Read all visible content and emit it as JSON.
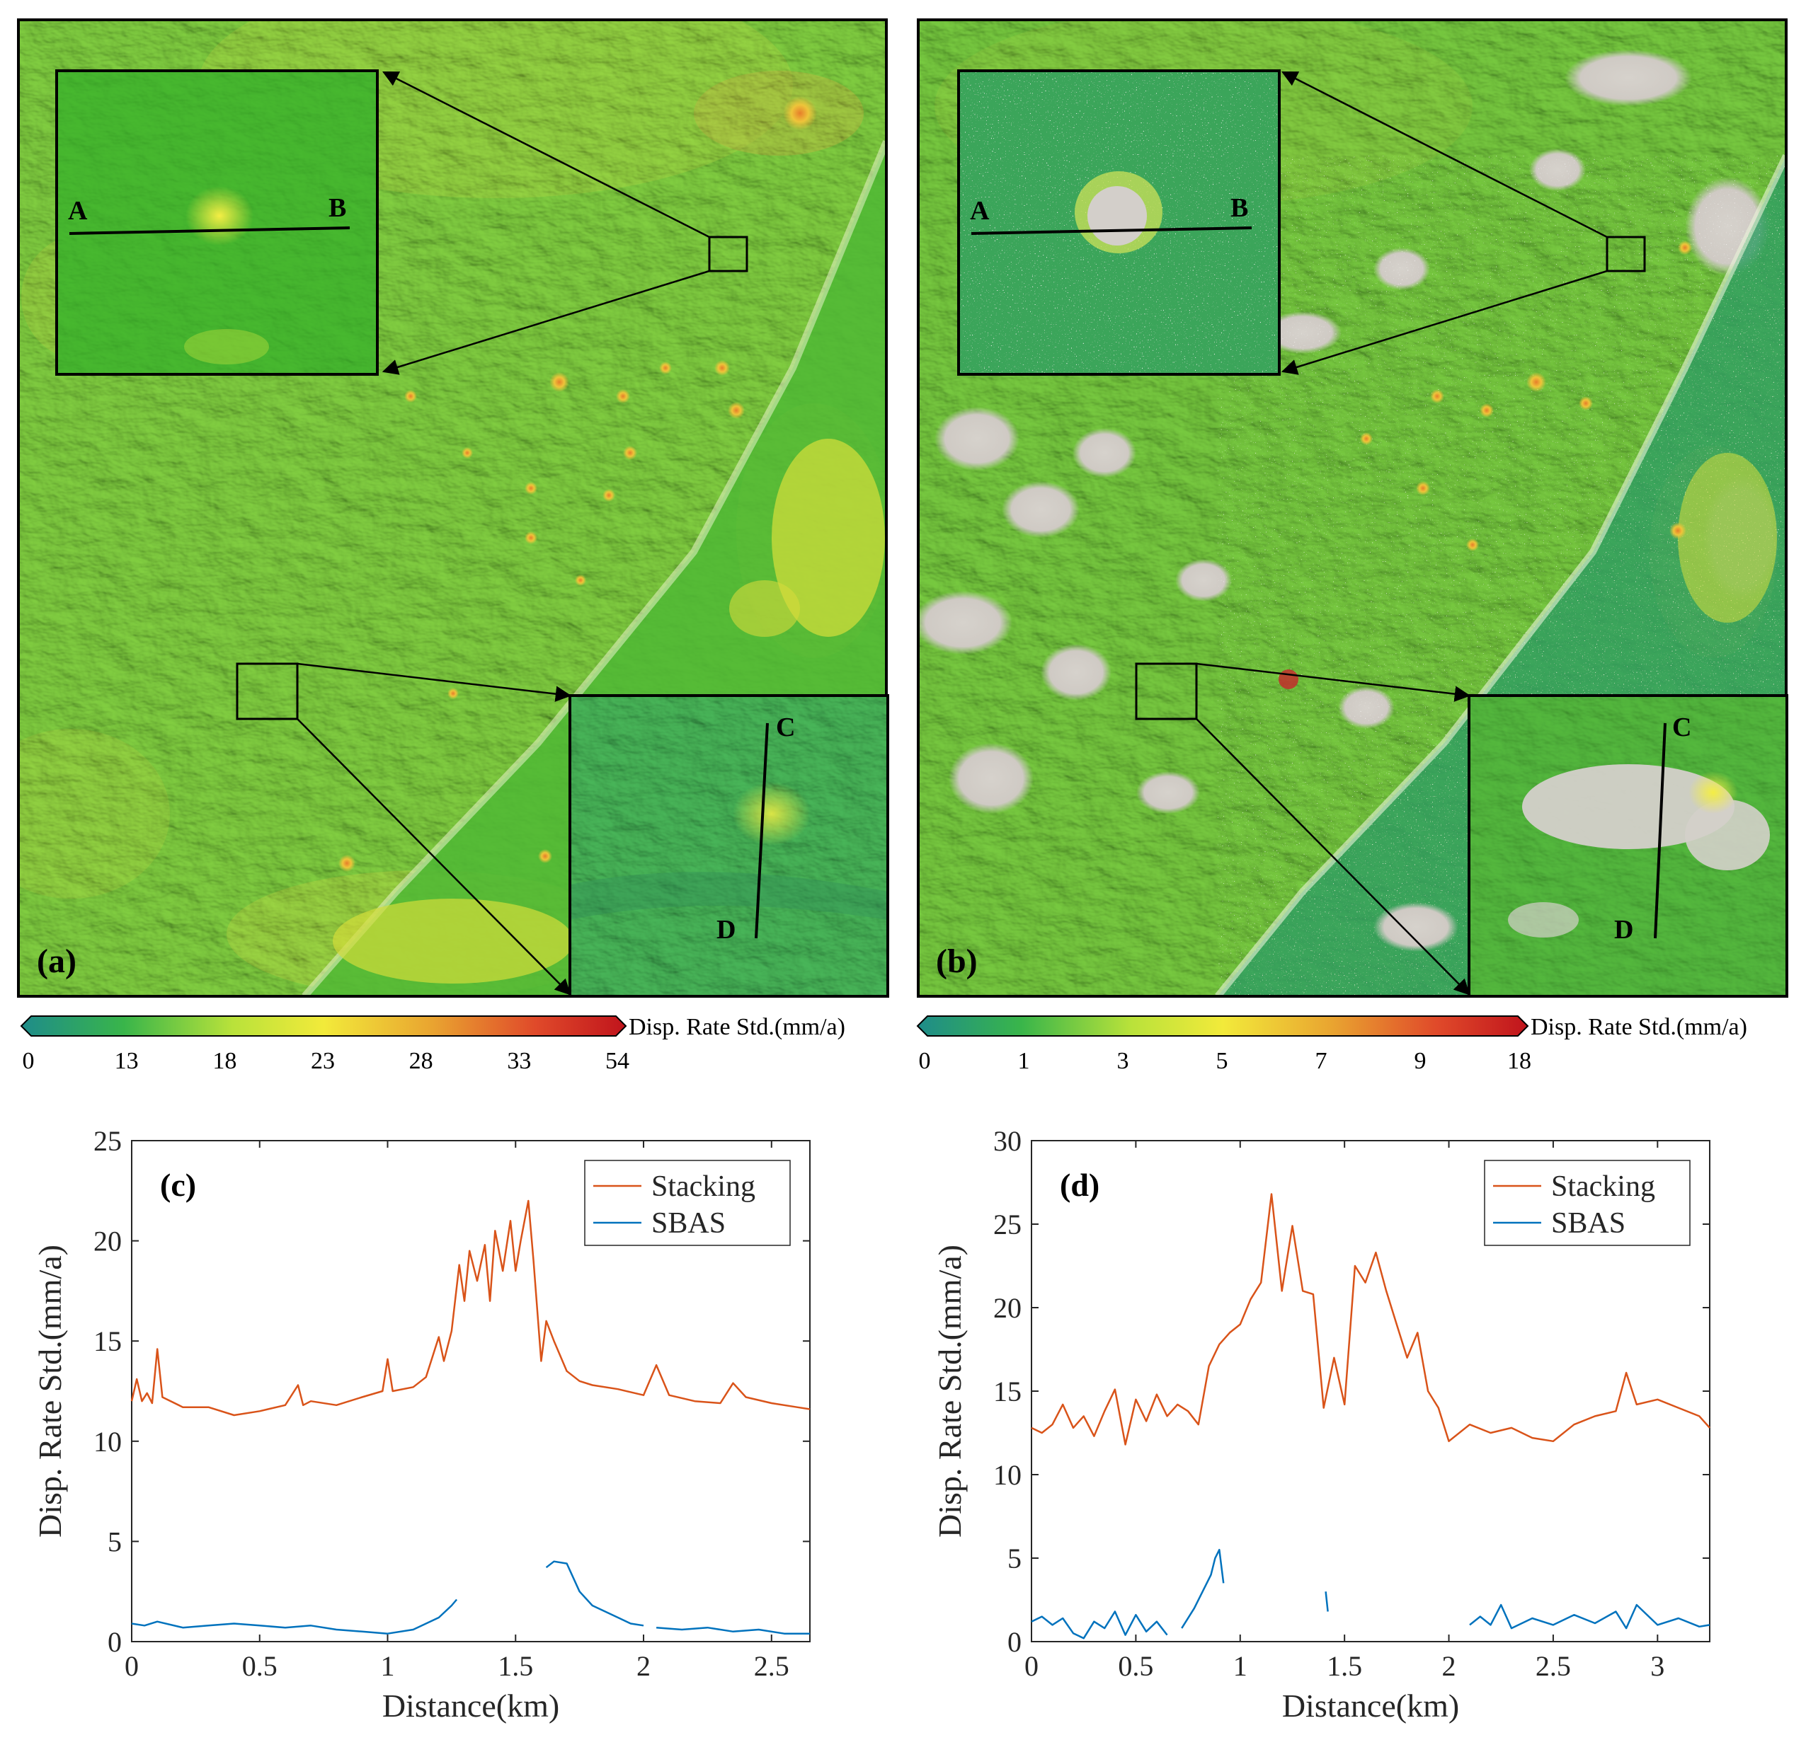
{
  "maps": [
    {
      "id": "a",
      "panel_label": "(a)",
      "inset_top": {
        "point_a": "A",
        "point_b": "B"
      },
      "inset_bottom": {
        "point_c": "C",
        "point_d": "D"
      },
      "colorbar": {
        "title": "Disp. Rate Std.(mm/a)",
        "ticks": [
          "0",
          "13",
          "18",
          "23",
          "28",
          "33",
          "54"
        ]
      }
    },
    {
      "id": "b",
      "panel_label": "(b)",
      "inset_top": {
        "point_a": "A",
        "point_b": "B"
      },
      "inset_bottom": {
        "point_c": "C",
        "point_d": "D"
      },
      "colorbar": {
        "title": "Disp. Rate Std.(mm/a)",
        "ticks": [
          "0",
          "1",
          "3",
          "5",
          "7",
          "9",
          "18"
        ]
      }
    }
  ],
  "colors": {
    "stacking": "#d95319",
    "sbas": "#0072bd",
    "map_green": "#5cc02f",
    "map_yellow": "#e8e03a",
    "map_red": "#c8262a",
    "map_teal": "#2f9a86",
    "map_gray": "#c9c6c2"
  },
  "chart_data": [
    {
      "type": "line",
      "panel_label": "(c)",
      "xlabel": "Distance(km)",
      "ylabel": "Disp. Rate Std.(mm/a)",
      "xlim": [
        0,
        2.65
      ],
      "ylim": [
        0,
        25
      ],
      "xticks": [
        0,
        0.5,
        1,
        1.5,
        2,
        2.5
      ],
      "yticks": [
        0,
        5,
        10,
        15,
        20,
        25
      ],
      "legend": {
        "position": "top-right",
        "entries": [
          "Stacking",
          "SBAS"
        ]
      },
      "series": [
        {
          "name": "Stacking",
          "x": [
            0,
            0.02,
            0.04,
            0.06,
            0.08,
            0.1,
            0.12,
            0.2,
            0.3,
            0.4,
            0.5,
            0.6,
            0.65,
            0.67,
            0.7,
            0.8,
            0.9,
            0.98,
            1.0,
            1.02,
            1.1,
            1.15,
            1.2,
            1.22,
            1.25,
            1.28,
            1.3,
            1.32,
            1.35,
            1.38,
            1.4,
            1.42,
            1.45,
            1.48,
            1.5,
            1.52,
            1.55,
            1.57,
            1.6,
            1.62,
            1.65,
            1.7,
            1.75,
            1.8,
            1.9,
            2.0,
            2.05,
            2.1,
            2.2,
            2.3,
            2.35,
            2.4,
            2.5,
            2.6,
            2.65
          ],
          "values": [
            12.0,
            13.1,
            12.0,
            12.4,
            11.9,
            14.6,
            12.2,
            11.7,
            11.7,
            11.3,
            11.5,
            11.8,
            12.8,
            11.8,
            12.0,
            11.8,
            12.2,
            12.5,
            14.1,
            12.5,
            12.7,
            13.2,
            15.2,
            14.0,
            15.5,
            18.8,
            17.0,
            19.5,
            18.0,
            19.8,
            17.0,
            20.5,
            18.5,
            21.0,
            18.5,
            20.0,
            22.0,
            19.0,
            14.0,
            16.0,
            15.0,
            13.5,
            13.0,
            12.8,
            12.6,
            12.3,
            13.8,
            12.3,
            12.0,
            11.9,
            12.9,
            12.2,
            11.9,
            11.7,
            11.6
          ]
        },
        {
          "name": "SBAS",
          "segments": [
            {
              "x": [
                0,
                0.05,
                0.1,
                0.2,
                0.3,
                0.4,
                0.5,
                0.6,
                0.7,
                0.8,
                0.9,
                1.0,
                1.1,
                1.2,
                1.25,
                1.27
              ],
              "values": [
                0.9,
                0.8,
                1.0,
                0.7,
                0.8,
                0.9,
                0.8,
                0.7,
                0.8,
                0.6,
                0.5,
                0.4,
                0.6,
                1.2,
                1.8,
                2.1
              ]
            },
            {
              "x": [
                1.62,
                1.65,
                1.7,
                1.75,
                1.8,
                1.85,
                1.9,
                1.95,
                2.0
              ],
              "values": [
                3.7,
                4.0,
                3.9,
                2.5,
                1.8,
                1.5,
                1.2,
                0.9,
                0.8
              ]
            },
            {
              "x": [
                2.05,
                2.15,
                2.25,
                2.35,
                2.45,
                2.55,
                2.65
              ],
              "values": [
                0.7,
                0.6,
                0.7,
                0.5,
                0.6,
                0.4,
                0.4
              ]
            }
          ]
        }
      ]
    },
    {
      "type": "line",
      "panel_label": "(d)",
      "xlabel": "Distance(km)",
      "ylabel": "Disp. Rate Std.(mm/a)",
      "xlim": [
        0,
        3.25
      ],
      "ylim": [
        0,
        30
      ],
      "xticks": [
        0,
        0.5,
        1,
        1.5,
        2,
        2.5,
        3
      ],
      "yticks": [
        0,
        5,
        10,
        15,
        20,
        25,
        30
      ],
      "legend": {
        "position": "top-right",
        "entries": [
          "Stacking",
          "SBAS"
        ]
      },
      "series": [
        {
          "name": "Stacking",
          "x": [
            0,
            0.05,
            0.1,
            0.15,
            0.2,
            0.25,
            0.3,
            0.35,
            0.4,
            0.45,
            0.5,
            0.55,
            0.6,
            0.65,
            0.7,
            0.75,
            0.8,
            0.85,
            0.9,
            0.95,
            1.0,
            1.05,
            1.1,
            1.15,
            1.2,
            1.25,
            1.3,
            1.35,
            1.4,
            1.45,
            1.5,
            1.55,
            1.6,
            1.65,
            1.7,
            1.75,
            1.8,
            1.85,
            1.9,
            1.95,
            2.0,
            2.1,
            2.2,
            2.3,
            2.4,
            2.5,
            2.6,
            2.7,
            2.8,
            2.85,
            2.9,
            3.0,
            3.1,
            3.2,
            3.25
          ],
          "values": [
            12.8,
            12.5,
            13.0,
            14.2,
            12.8,
            13.5,
            12.3,
            13.8,
            15.1,
            11.8,
            14.5,
            13.2,
            14.8,
            13.5,
            14.2,
            13.8,
            13.0,
            16.5,
            17.8,
            18.5,
            19.0,
            20.5,
            21.5,
            26.8,
            21.0,
            24.9,
            21.0,
            20.8,
            14.0,
            17.0,
            14.2,
            22.5,
            21.5,
            23.3,
            21.0,
            19.0,
            17.0,
            18.5,
            15.0,
            14.0,
            12.0,
            13.0,
            12.5,
            12.8,
            12.2,
            12.0,
            13.0,
            13.5,
            13.8,
            16.1,
            14.2,
            14.5,
            14.0,
            13.5,
            12.8
          ]
        },
        {
          "name": "SBAS",
          "segments": [
            {
              "x": [
                0,
                0.05,
                0.1,
                0.15,
                0.2,
                0.25,
                0.3,
                0.35,
                0.4,
                0.45,
                0.5,
                0.55,
                0.6,
                0.65
              ],
              "values": [
                1.2,
                1.5,
                1.0,
                1.4,
                0.5,
                0.2,
                1.2,
                0.8,
                1.8,
                0.4,
                1.6,
                0.6,
                1.2,
                0.4
              ]
            },
            {
              "x": [
                0.72,
                0.78,
                0.82,
                0.86,
                0.88,
                0.9,
                0.92
              ],
              "values": [
                0.8,
                2.0,
                3.0,
                4.0,
                5.0,
                5.5,
                3.5
              ]
            },
            {
              "x": [
                1.41,
                1.42
              ],
              "values": [
                3.0,
                1.8
              ]
            },
            {
              "x": [
                2.1,
                2.15,
                2.2,
                2.25,
                2.3,
                2.4,
                2.5,
                2.6,
                2.7,
                2.8,
                2.85,
                2.9,
                3.0,
                3.1,
                3.2,
                3.25
              ],
              "values": [
                1.0,
                1.5,
                1.0,
                2.2,
                0.8,
                1.4,
                1.0,
                1.6,
                1.1,
                1.8,
                0.8,
                2.2,
                1.0,
                1.4,
                0.9,
                1.0
              ]
            }
          ]
        }
      ]
    }
  ]
}
